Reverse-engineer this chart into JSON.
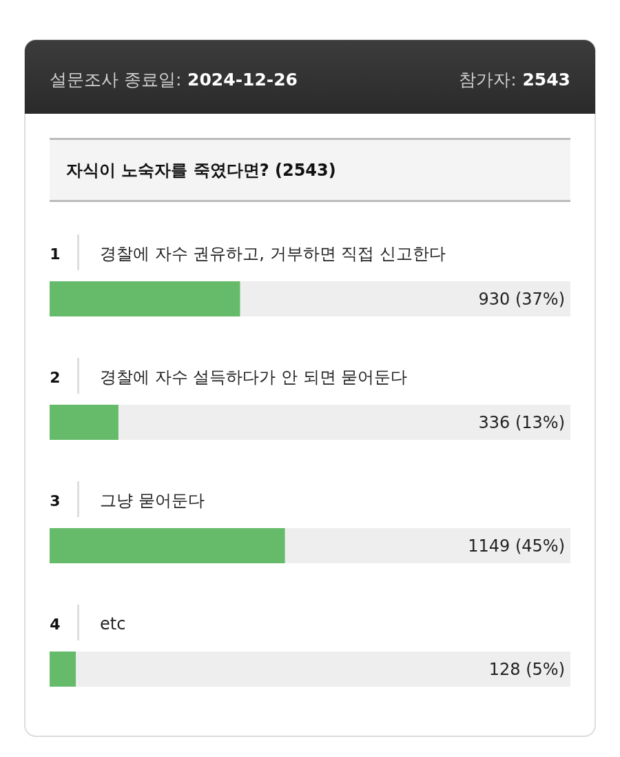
{
  "chart_data": {
    "type": "bar",
    "orientation": "horizontal",
    "title": "자식이 노숙자를 죽였다면? (2543)",
    "annotations": [
      "설문조사 종료일: 2024-12-26",
      "참가자: 2543",
      "1",
      "2",
      "3",
      "4"
    ],
    "categories": [
      "경찰에 자수 권유하고, 거부하면 직접 신고한다",
      "경찰에 자수 설득하다가 안 되면 묻어둔다",
      "그냥 묻어둔다",
      "etc"
    ],
    "values": [
      930,
      336,
      1149,
      128
    ],
    "value_labels": [
      "930 (37%)",
      "336 (13%)",
      "1149 (45%)",
      "128 (5%)"
    ],
    "color": "#66bb6a",
    "xlim": [
      0,
      2543
    ]
  }
}
